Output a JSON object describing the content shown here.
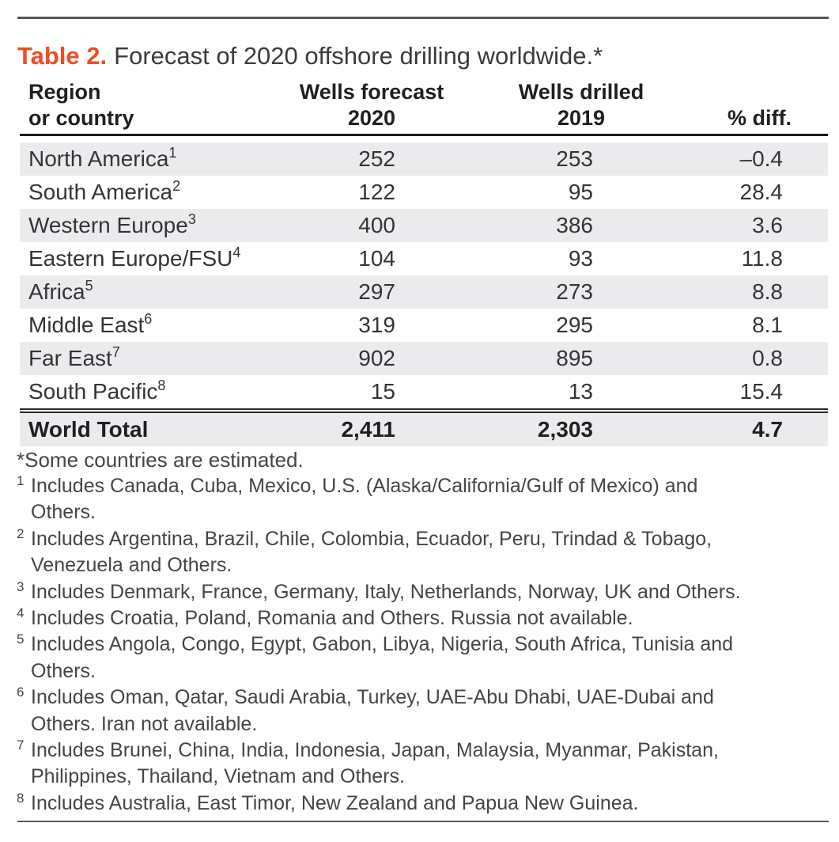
{
  "title": {
    "label": "Table 2.",
    "text": "Forecast of 2020 offshore drilling worldwide.*"
  },
  "table": {
    "headers": {
      "col1_line1": "Region",
      "col1_line2": "or country",
      "col2_line1": "Wells forecast",
      "col2_line2": "2020",
      "col3_line1": "Wells drilled",
      "col3_line2": "2019",
      "col4": "% diff."
    },
    "rows": [
      {
        "region": "North America",
        "sup": "1",
        "forecast": "252",
        "drilled": "253",
        "diff": "–0.4"
      },
      {
        "region": "South America",
        "sup": "2",
        "forecast": "122",
        "drilled": "95",
        "diff": "28.4"
      },
      {
        "region": "Western Europe",
        "sup": "3",
        "forecast": "400",
        "drilled": "386",
        "diff": "3.6"
      },
      {
        "region": "Eastern Europe/FSU",
        "sup": "4",
        "forecast": "104",
        "drilled": "93",
        "diff": "11.8"
      },
      {
        "region": "Africa",
        "sup": "5",
        "forecast": "297",
        "drilled": "273",
        "diff": "8.8"
      },
      {
        "region": "Middle East",
        "sup": "6",
        "forecast": "319",
        "drilled": "295",
        "diff": "8.1"
      },
      {
        "region": "Far East",
        "sup": "7",
        "forecast": "902",
        "drilled": "895",
        "diff": "0.8"
      },
      {
        "region": "South Pacific",
        "sup": "8",
        "forecast": "15",
        "drilled": "13",
        "diff": "15.4"
      }
    ],
    "total": {
      "region": "World Total",
      "forecast": "2,411",
      "drilled": "2,303",
      "diff": "4.7"
    }
  },
  "footnotes": {
    "star": "*Some countries are estimated.",
    "items": [
      {
        "sup": "1",
        "lines": [
          "Includes Canada, Cuba, Mexico, U.S. (Alaska/California/Gulf of Mexico) and",
          "Others."
        ]
      },
      {
        "sup": "2",
        "lines": [
          "Includes Argentina, Brazil, Chile, Colombia, Ecuador, Peru, Trindad & Tobago,",
          "Venezuela and Others."
        ]
      },
      {
        "sup": "3",
        "lines": [
          "Includes Denmark, France, Germany, Italy, Netherlands, Norway, UK and Others."
        ]
      },
      {
        "sup": "4",
        "lines": [
          "Includes Croatia, Poland, Romania and Others. Russia not available."
        ]
      },
      {
        "sup": "5",
        "lines": [
          "Includes Angola, Congo, Egypt, Gabon, Libya, Nigeria, South Africa, Tunisia and",
          "Others."
        ]
      },
      {
        "sup": "6",
        "lines": [
          "Includes Oman, Qatar, Saudi Arabia, Turkey, UAE-Abu Dhabi, UAE-Dubai and",
          "Others. Iran not available."
        ]
      },
      {
        "sup": "7",
        "lines": [
          "Includes Brunei, China, India, Indonesia, Japan, Malaysia, Myanmar, Pakistan,",
          "Philippines, Thailand, Vietnam and Others."
        ]
      },
      {
        "sup": "8",
        "lines": [
          "Includes Australia, East Timor, New Zealand and Papua New Guinea."
        ]
      }
    ]
  },
  "colors": {
    "accent_orange": "#ee4e25",
    "row_shade": "#ebebed",
    "frame_rule": "#54585b",
    "header_rule": "#1a1a1a",
    "body_text": "#343437"
  }
}
